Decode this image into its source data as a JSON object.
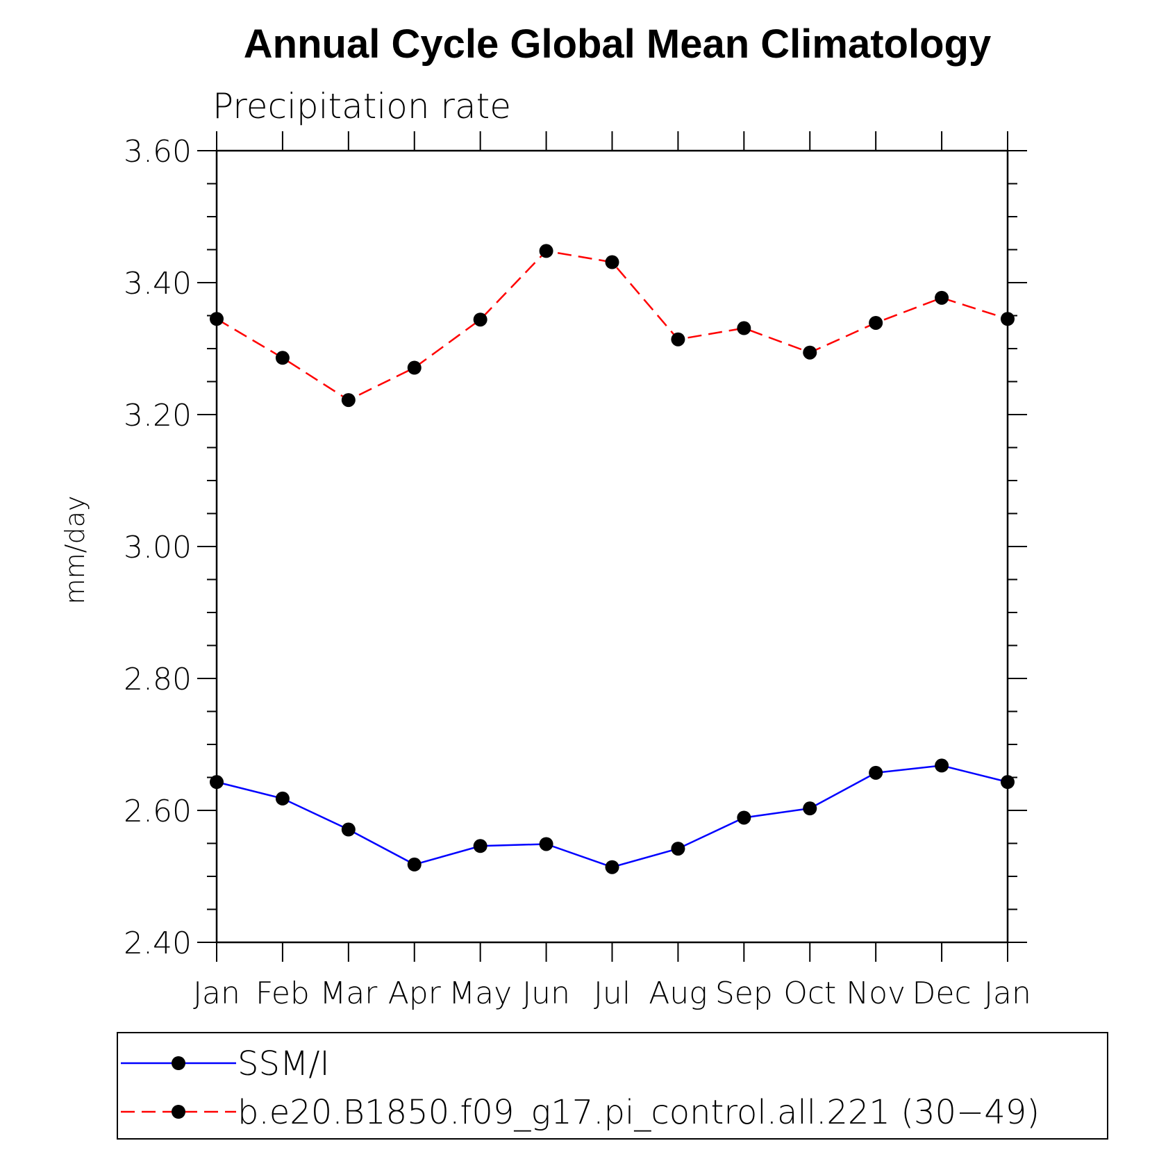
{
  "chart_data": {
    "type": "line",
    "title": "Annual Cycle Global Mean Climatology",
    "subtitle": "Precipitation rate",
    "ylabel": "mm/day",
    "xlabel": "",
    "categories": [
      "Jan",
      "Feb",
      "Mar",
      "Apr",
      "May",
      "Jun",
      "Jul",
      "Aug",
      "Sep",
      "Oct",
      "Nov",
      "Dec",
      "Jan"
    ],
    "ylim": [
      2.4,
      3.6
    ],
    "yticks": [
      "3.60",
      "3.40",
      "3.20",
      "3.00",
      "2.80",
      "2.60",
      "2.40"
    ],
    "grid": false,
    "legend_position": "bottom",
    "series": [
      {
        "name": "SSM/I",
        "color": "#0000ff",
        "dash": "solid",
        "marker": "filled-circle",
        "values": [
          2.643,
          2.618,
          2.571,
          2.518,
          2.546,
          2.549,
          2.514,
          2.542,
          2.589,
          2.603,
          2.657,
          2.668,
          2.643
        ]
      },
      {
        "name": "b.e20.B1850.f09_g17.pi_control.all.221 (30−49)",
        "color": "#ff0000",
        "dash": "dashed",
        "marker": "filled-circle",
        "values": [
          3.345,
          3.286,
          3.222,
          3.271,
          3.344,
          3.448,
          3.431,
          3.314,
          3.331,
          3.294,
          3.339,
          3.377,
          3.345
        ]
      }
    ]
  }
}
